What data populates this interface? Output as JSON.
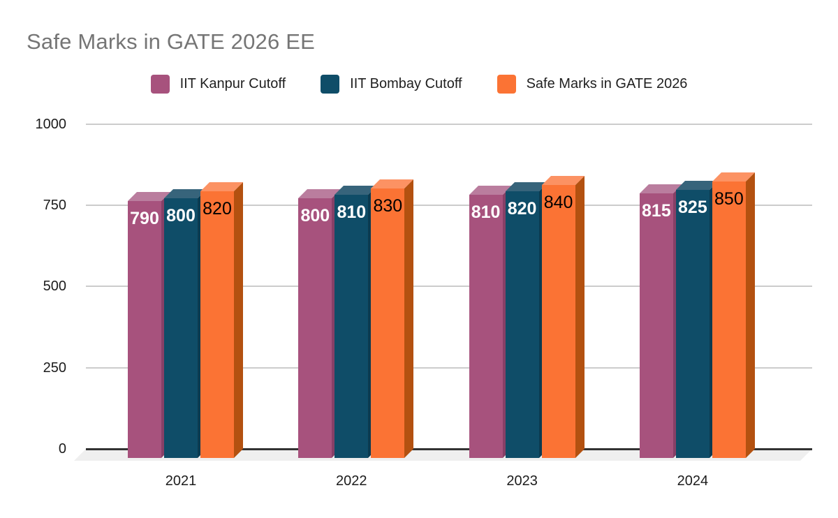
{
  "title": "Safe Marks in GATE 2026 EE",
  "chart_data": {
    "type": "bar",
    "style": "3d-oblique-grouped",
    "title": "Safe Marks in GATE 2026 EE",
    "categories": [
      "2021",
      "2022",
      "2023",
      "2024"
    ],
    "series": [
      {
        "name": "IIT Kanpur Cutoff",
        "values": [
          790,
          800,
          810,
          815
        ],
        "color": "#a7527d",
        "top_color": "#ba7d9e",
        "side_color": "#874067",
        "label_color": "#ffffff",
        "label_weight": "bold"
      },
      {
        "name": "IIT Bombay Cutoff",
        "values": [
          800,
          810,
          820,
          825
        ],
        "color": "#0f4d68",
        "top_color": "#37647b",
        "side_color": "#0c3b50",
        "label_color": "#ffffff",
        "label_weight": "bold"
      },
      {
        "name": "Safe Marks in GATE 2026",
        "values": [
          820,
          830,
          840,
          850
        ],
        "color": "#fb7334",
        "top_color": "#fc9263",
        "side_color": "#b35110",
        "label_color": "#000000",
        "label_weight": "normal"
      }
    ],
    "y_ticks": [
      0,
      250,
      500,
      750,
      1000
    ],
    "ylim": [
      0,
      1000
    ],
    "grid": true,
    "legend_position": "top",
    "colors": {
      "title_text": "#757575",
      "axis_text": "#1c1c1c",
      "gridline": "#cccccc",
      "baseline": "#333333",
      "floor": "#efefef",
      "background": "#ffffff"
    }
  }
}
